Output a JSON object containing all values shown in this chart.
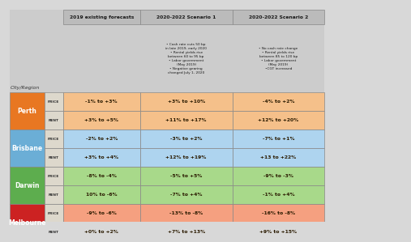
{
  "col_headers": [
    "2019 existing forecasts",
    "2020-2022 Scenario 1",
    "2020-2022 Scenario 2"
  ],
  "scenario1_text": "• Cash rate cuts 50 bp\nin late 2019, early 2020\n• Rental yields rise\nbetween 60 to 95 bp\n• Labor government\n(May 2019)\n• Negative gearing\nchanged July 1, 2020",
  "scenario2_text": "• No cash rate change\n• Rental yields rise\nbetween 85 to 120 bp\n• Labor government\n(May 2019)\n•CGT increased",
  "cities": [
    "Perth",
    "Brisbane",
    "Darwin",
    "Melbourne"
  ],
  "city_colors": [
    "#E87722",
    "#6BAED6",
    "#5DAD4E",
    "#CC2222"
  ],
  "row_bg_price": [
    "#F5C08A",
    "#AED4EF",
    "#A8D98A",
    "#F5A080"
  ],
  "row_bg_rent": [
    "#F5C08A",
    "#AED4EF",
    "#A8D98A",
    "#F5A080"
  ],
  "data": [
    {
      "city": "Perth",
      "price": [
        "-1% to +3%",
        "+3% to +10%",
        "-4% to +2%"
      ],
      "rent": [
        "+3% to +5%",
        "+11% to +17%",
        "+12% to +20%"
      ]
    },
    {
      "city": "Brisbane",
      "price": [
        "-2% to +2%",
        "-3% to +2%",
        "-7% to +1%"
      ],
      "rent": [
        "+3% to +4%",
        "+12% to +19%",
        "+13 to +22%"
      ]
    },
    {
      "city": "Darwin",
      "price": [
        "-8% to -4%",
        "-5% to +5%",
        "-9% to -3%"
      ],
      "rent": [
        "10% to -6%",
        "-7% to +4%",
        "-1% to +4%"
      ]
    },
    {
      "city": "Melbourne",
      "price": [
        "-9% to -6%",
        "-13% to -8%",
        "-16% to -8%"
      ],
      "rent": [
        "+0% to +2%",
        "+7% to +13%",
        "+9% to +15%"
      ]
    }
  ],
  "header_text_color": "#1a1a1a",
  "cell_text_color": "#2a1a00",
  "city_region_label": "City/Region",
  "bg_color": "#d8d8d8"
}
